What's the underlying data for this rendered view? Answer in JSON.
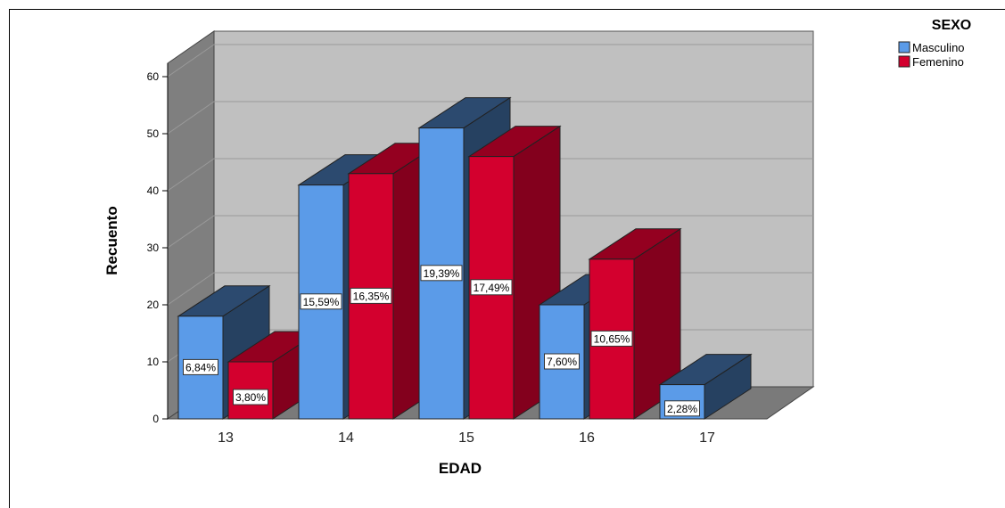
{
  "chart_data": {
    "type": "bar",
    "categories": [
      "13",
      "14",
      "15",
      "16",
      "17"
    ],
    "xlabel": "EDAD",
    "ylabel": "Recuento",
    "ylim": [
      0,
      60
    ],
    "yticks": [
      "0",
      "10",
      "20",
      "30",
      "40",
      "50",
      "60"
    ],
    "legend_title": "SEXO",
    "legend_position": "top-right",
    "grid": true,
    "style": "3d-clustered",
    "series": [
      {
        "name": "Masculino",
        "color": "#5b9be8",
        "values": [
          18,
          41,
          51,
          20,
          6
        ],
        "labels": [
          "6,84%",
          "15,59%",
          "19,39%",
          "7,60%",
          "2,28%"
        ]
      },
      {
        "name": "Femenino",
        "color": "#d3002e",
        "values": [
          10,
          43,
          46,
          28,
          null
        ],
        "labels": [
          "3,80%",
          "16,35%",
          "17,49%",
          "10,65%",
          null
        ]
      }
    ]
  }
}
